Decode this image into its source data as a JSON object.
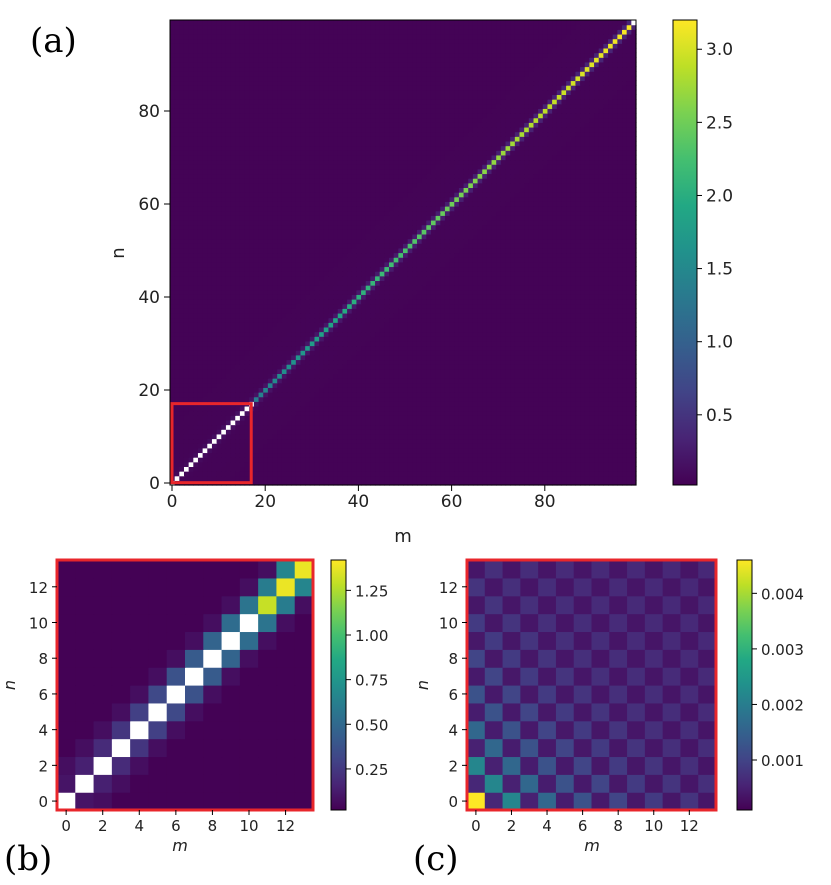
{
  "chart_data": [
    {
      "panel": "(a)",
      "type": "heatmap",
      "title": "",
      "xlabel": "m",
      "ylabel": "n",
      "size": 100,
      "xlim": [
        0,
        99
      ],
      "ylim": [
        0,
        99
      ],
      "xticks": [
        "0",
        "20",
        "40",
        "60",
        "80"
      ],
      "yticks": [
        "0",
        "20",
        "40",
        "60",
        "80"
      ],
      "colorbar": {
        "ticks": [
          "0.5",
          "1.0",
          "1.5",
          "2.0",
          "2.5",
          "3.0"
        ],
        "vmin": 0.02,
        "vmax": 3.2
      },
      "pattern": "diagonal band, value ~0.32*sqrt(n), off-diagonal near 0; inset box marks region 0-17",
      "highlight_box": [
        0,
        17
      ],
      "colormap": "viridis",
      "highlight_color": "#e8262b"
    },
    {
      "panel": "(b)",
      "type": "heatmap",
      "title": "",
      "xlabel": "m",
      "ylabel": "n",
      "size": 14,
      "xticks": [
        "0",
        "2",
        "4",
        "6",
        "8",
        "10",
        "12"
      ],
      "yticks": [
        "0",
        "2",
        "4",
        "6",
        "8",
        "10",
        "12"
      ],
      "colorbar": {
        "ticks": [
          "0.25",
          "0.50",
          "0.75",
          "1.00",
          "1.25"
        ],
        "vmin": 0.02,
        "vmax": 1.42
      },
      "pattern": "tridiagonal band; diagonal saturates white for n<=10",
      "colormap": "viridis"
    },
    {
      "panel": "(c)",
      "type": "heatmap",
      "title": "",
      "xlabel": "m",
      "ylabel": "n",
      "size": 14,
      "xticks": [
        "0",
        "2",
        "4",
        "6",
        "8",
        "10",
        "12"
      ],
      "yticks": [
        "0",
        "2",
        "4",
        "6",
        "8",
        "10",
        "12"
      ],
      "colorbar": {
        "ticks": [
          "0.001",
          "0.002",
          "0.003",
          "0.004"
        ],
        "vmin": 0.0001,
        "vmax": 0.0046
      },
      "pattern": "checkerboard decaying from corner (0,0)=0.0046",
      "colormap": "viridis"
    }
  ]
}
